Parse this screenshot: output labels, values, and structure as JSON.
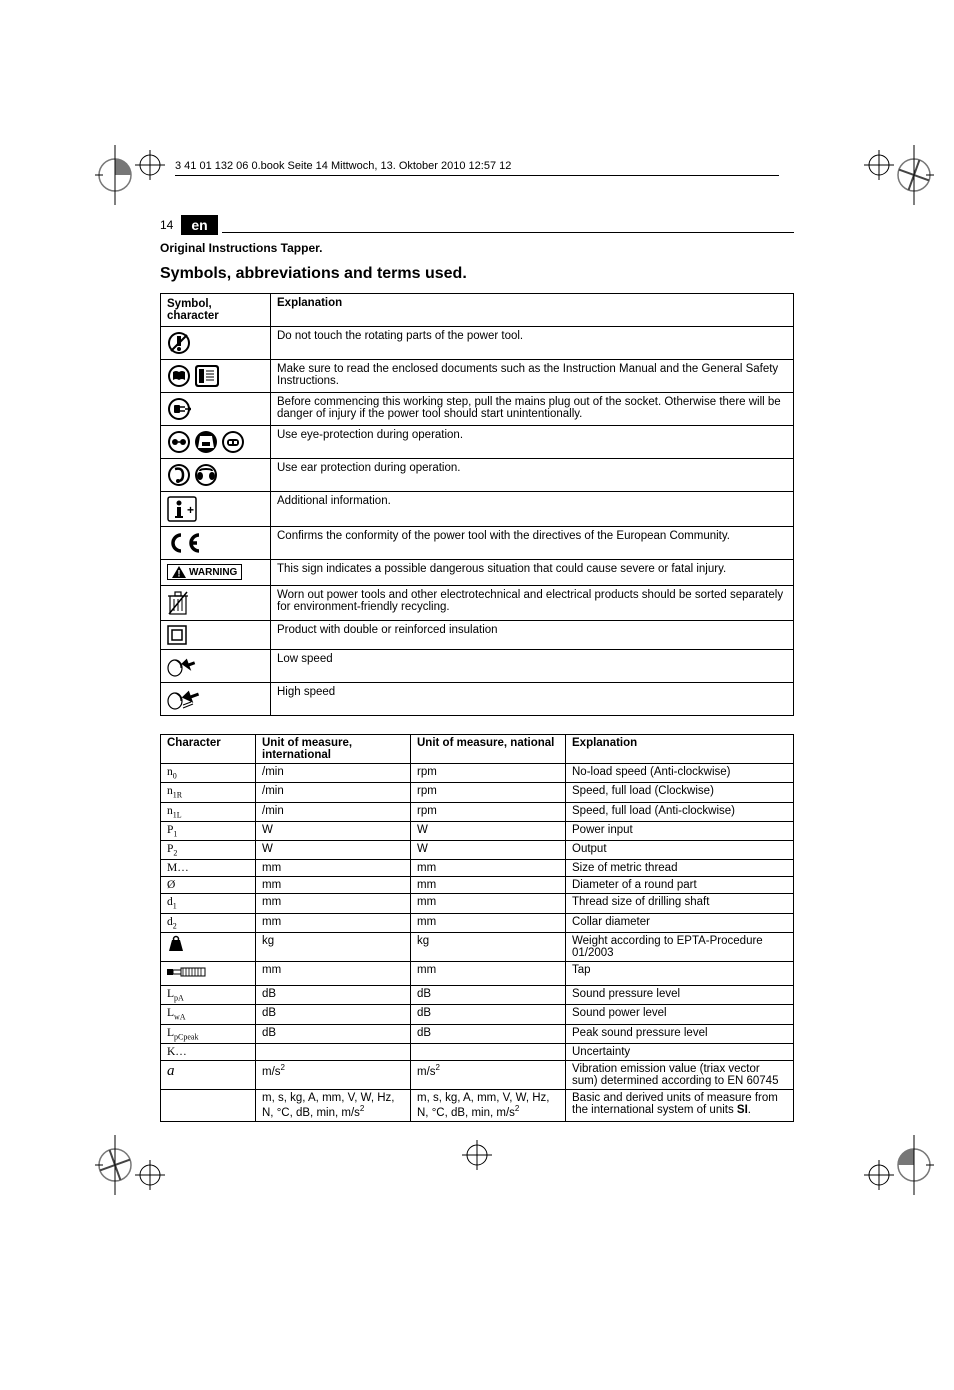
{
  "header_note": "3 41 01 132 06 0.book  Seite 14  Mittwoch, 13. Oktober 2010  12:57 12",
  "page_number": "14",
  "lang": "en",
  "subtitle": "Original Instructions Tapper.",
  "section_title": "Symbols, abbreviations and terms used.",
  "table1": {
    "headers": [
      "Symbol, character",
      "Explanation"
    ],
    "rows": [
      {
        "icon": "no-touch",
        "text": "Do not touch the rotating parts of the power tool."
      },
      {
        "icon": "read-docs",
        "text": "Make sure to read the enclosed documents such as the Instruction Manual and the General Safety Instructions."
      },
      {
        "icon": "unplug",
        "text": "Before commencing this working step, pull the mains plug out of the socket. Otherwise there will be danger of injury if the power tool should start unintentionally."
      },
      {
        "icon": "eye-protect",
        "text": "Use eye-protection during operation."
      },
      {
        "icon": "ear-protect",
        "text": "Use ear protection during operation."
      },
      {
        "icon": "info",
        "text": "Additional information."
      },
      {
        "icon": "ce",
        "text": "Confirms the conformity of the power tool with the directives of the European Community."
      },
      {
        "icon": "warning",
        "text": "This sign indicates a possible dangerous situation that could cause severe or fatal injury."
      },
      {
        "icon": "recycle-bin",
        "text": "Worn out power tools and other electrotechnical and electrical products should be sorted separately for environment-friendly recycling."
      },
      {
        "icon": "double-insul",
        "text": "Product with double or reinforced insulation"
      },
      {
        "icon": "low-speed",
        "text": "Low speed"
      },
      {
        "icon": "high-speed",
        "text": "High speed"
      }
    ]
  },
  "table2": {
    "headers": [
      "Character",
      "Unit of measure, international",
      "Unit of measure, national",
      "Explanation"
    ],
    "rows": [
      {
        "char": "n0",
        "char_type": "sub",
        "base": "n",
        "sub": "0",
        "ui": "/min",
        "un": "rpm",
        "exp": "No-load speed (Anti-clockwise)"
      },
      {
        "char": "n1R",
        "char_type": "sub",
        "base": "n",
        "sub": "1R",
        "ui": "/min",
        "un": "rpm",
        "exp": "Speed, full load (Clockwise)"
      },
      {
        "char": "n1L",
        "char_type": "sub",
        "base": "n",
        "sub": "1L",
        "ui": "/min",
        "un": "rpm",
        "exp": "Speed, full load (Anti-clockwise)"
      },
      {
        "char": "P1",
        "char_type": "sub",
        "base": "P",
        "sub": "1",
        "ui": "W",
        "un": "W",
        "exp": "Power input"
      },
      {
        "char": "P2",
        "char_type": "sub",
        "base": "P",
        "sub": "2",
        "ui": "W",
        "un": "W",
        "exp": "Output"
      },
      {
        "char": "M",
        "char_type": "plain",
        "base": "M…",
        "ui": "mm",
        "un": "mm",
        "exp": "Size of metric thread"
      },
      {
        "char": "diam",
        "char_type": "plain",
        "base": "Ø",
        "ui": "mm",
        "un": "mm",
        "exp": "Diameter of a round part"
      },
      {
        "char": "d1",
        "char_type": "sub",
        "base": "d",
        "sub": "1",
        "ui": "mm",
        "un": "mm",
        "exp": "Thread size of drilling shaft"
      },
      {
        "char": "d2",
        "char_type": "sub",
        "base": "d",
        "sub": "2",
        "ui": "mm",
        "un": "mm",
        "exp": "Collar diameter"
      },
      {
        "char": "weight",
        "char_type": "icon",
        "ui": "kg",
        "un": "kg",
        "exp": "Weight according to EPTA-Procedure 01/2003"
      },
      {
        "char": "tap",
        "char_type": "icon",
        "ui": "mm",
        "un": "mm",
        "exp": "Tap"
      },
      {
        "char": "LpA",
        "char_type": "sub",
        "base": "L",
        "sub": "pA",
        "ui": "dB",
        "un": "dB",
        "exp": "Sound pressure level"
      },
      {
        "char": "LwA",
        "char_type": "sub",
        "base": "L",
        "sub": "wA",
        "ui": "dB",
        "un": "dB",
        "exp": "Sound power level"
      },
      {
        "char": "LpCpeak",
        "char_type": "sub",
        "base": "L",
        "sub": "pCpeak",
        "ui": "dB",
        "un": "dB",
        "exp": "Peak sound pressure level"
      },
      {
        "char": "K",
        "char_type": "plain",
        "base": "K…",
        "ui": "",
        "un": "",
        "exp": "Uncertainty"
      },
      {
        "char": "a",
        "char_type": "italic",
        "base": "a",
        "ui": "m/s2",
        "un": "m/s2",
        "exp": "Vibration emission value (triax vector sum) determined according to EN 60745"
      },
      {
        "char": "units",
        "char_type": "blank",
        "ui": "m, s, kg, A, mm, V, W, Hz, N, °C, dB, min, m/s2",
        "un": "m, s, kg, A, mm, V, W, Hz, N, °C, dB, min, m/s2",
        "exp": "Basic and derived units of measure from the international system of units SI."
      }
    ]
  },
  "warning_label": "WARNING",
  "colors": {
    "black": "#000000",
    "white": "#ffffff"
  }
}
